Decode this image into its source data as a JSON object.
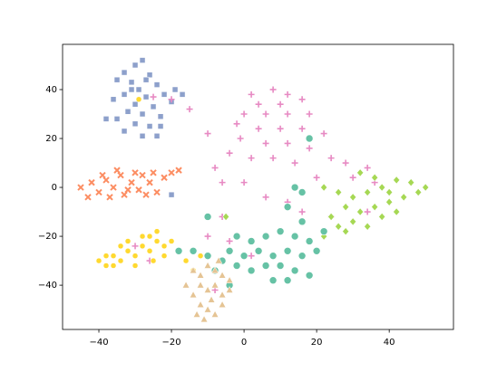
{
  "chart_data": {
    "type": "scatter",
    "xlim": [
      -50,
      57.7
    ],
    "ylim": [
      -58.1,
      58.5
    ],
    "xticks": [
      {
        "value": -40,
        "label": "−40"
      },
      {
        "value": -20,
        "label": "−20"
      },
      0,
      20,
      40
    ],
    "yticks": [
      {
        "value": -40,
        "label": "−40"
      },
      {
        "value": -20,
        "label": "−20"
      },
      0,
      20,
      40
    ],
    "series": [
      {
        "color": "#8da0cb",
        "marker": "square",
        "x": [
          -30,
          -28,
          -33,
          -26,
          -31,
          -35,
          -24,
          -29,
          -33,
          -27,
          -22,
          -19,
          -36,
          -30,
          -25,
          -20,
          -32,
          -28,
          -23,
          -35,
          -30,
          -26,
          -33,
          -28,
          -24,
          -17,
          -38,
          -31,
          -27,
          -23,
          -20
        ],
        "values": [
          50,
          52,
          47,
          46,
          43,
          44,
          42,
          40,
          38,
          37,
          38,
          40,
          36,
          34,
          33,
          35,
          31,
          30,
          29,
          28,
          26,
          25,
          23,
          21,
          21,
          38,
          28,
          40,
          44,
          25,
          -3
        ]
      },
      {
        "color": "#fc8d62",
        "marker": "x",
        "x": [
          -45,
          -42,
          -40,
          -38,
          -36,
          -34,
          -33,
          -31,
          -29,
          -28,
          -26,
          -24,
          -22,
          -20,
          -37,
          -43,
          -35,
          -30,
          -27,
          -25,
          -18,
          -39,
          -32
        ],
        "values": [
          0,
          2,
          -2,
          3,
          0,
          5,
          -3,
          2,
          -1,
          5,
          2,
          -2,
          4,
          6,
          -4,
          -4,
          7,
          6,
          -3,
          6,
          7,
          5,
          -1
        ]
      },
      {
        "color": "#e78ac3",
        "marker": "plus",
        "x": [
          2,
          8,
          12,
          4,
          10,
          16,
          0,
          6,
          12,
          18,
          -2,
          4,
          10,
          16,
          22,
          -1,
          6,
          12,
          18,
          2,
          8,
          14,
          -4,
          24,
          28,
          34,
          30,
          20,
          -8,
          -6,
          0,
          6,
          12,
          16,
          24,
          -6,
          -10,
          -4,
          -26,
          -30,
          -8,
          -20,
          -25,
          -15,
          2,
          -10,
          34,
          36
        ],
        "values": [
          38,
          40,
          38,
          34,
          34,
          36,
          30,
          30,
          30,
          30,
          26,
          24,
          24,
          24,
          22,
          20,
          18,
          18,
          16,
          12,
          12,
          10,
          14,
          12,
          10,
          8,
          4,
          4,
          8,
          2,
          2,
          -4,
          -6,
          -10,
          -12,
          -12,
          -20,
          -22,
          -30,
          -24,
          -42,
          36,
          37,
          32,
          -28,
          22,
          -10,
          2
        ]
      },
      {
        "color": "#a6d854",
        "marker": "diamond",
        "x": [
          22,
          26,
          30,
          34,
          38,
          42,
          46,
          50,
          48,
          44,
          40,
          36,
          32,
          28,
          24,
          30,
          34,
          38,
          42,
          28,
          22,
          26,
          18,
          36,
          32,
          40,
          14,
          -5
        ],
        "values": [
          0,
          -2,
          -4,
          -2,
          0,
          3,
          2,
          0,
          -2,
          -4,
          -6,
          -8,
          -10,
          -8,
          -12,
          -14,
          -16,
          -12,
          -10,
          -18,
          -20,
          -16,
          -22,
          4,
          6,
          -2,
          -20,
          -12
        ]
      },
      {
        "color": "#66c2a5",
        "marker": "circle",
        "x": [
          -2,
          2,
          6,
          10,
          14,
          18,
          -4,
          0,
          4,
          8,
          12,
          16,
          -6,
          -2,
          2,
          6,
          10,
          14,
          18,
          12,
          -8,
          -10,
          -14,
          -18,
          8,
          16,
          20,
          -10,
          12,
          16,
          18,
          14,
          -4,
          22
        ],
        "values": [
          -20,
          -22,
          -20,
          -18,
          -20,
          -22,
          -26,
          -28,
          -26,
          -28,
          -26,
          -28,
          -30,
          -32,
          -34,
          -32,
          -32,
          -34,
          -36,
          -38,
          -34,
          -28,
          -26,
          -26,
          -38,
          -14,
          -26,
          -12,
          -8,
          -2,
          20,
          0,
          -40,
          -18
        ]
      },
      {
        "color": "#ffd92f",
        "marker": "circle-small",
        "x": [
          -40,
          -38,
          -36,
          -34,
          -32,
          -30,
          -28,
          -26,
          -24,
          -22,
          -20,
          -32,
          -28,
          -36,
          -30,
          -25,
          -26,
          -34,
          -22,
          -14,
          -16,
          -12,
          -38,
          -24,
          -29
        ],
        "values": [
          -30,
          -32,
          -28,
          -30,
          -26,
          -28,
          -24,
          -26,
          -22,
          -24,
          -22,
          -22,
          -20,
          -32,
          -32,
          -30,
          -20,
          -24,
          -28,
          -34,
          -30,
          -28,
          -28,
          -18,
          36
        ]
      },
      {
        "color": "#e5c494",
        "marker": "triangle",
        "x": [
          -14,
          -12,
          -10,
          -8,
          -6,
          -4,
          -12,
          -10,
          -8,
          -6,
          -14,
          -12,
          -10,
          -8,
          -6,
          -11,
          -9,
          -4,
          -16,
          -7,
          -13
        ],
        "values": [
          -34,
          -36,
          -32,
          -34,
          -36,
          -38,
          -40,
          -42,
          -40,
          -44,
          -44,
          -48,
          -50,
          -52,
          -48,
          -54,
          -46,
          -42,
          -40,
          -30,
          -52
        ]
      }
    ]
  }
}
